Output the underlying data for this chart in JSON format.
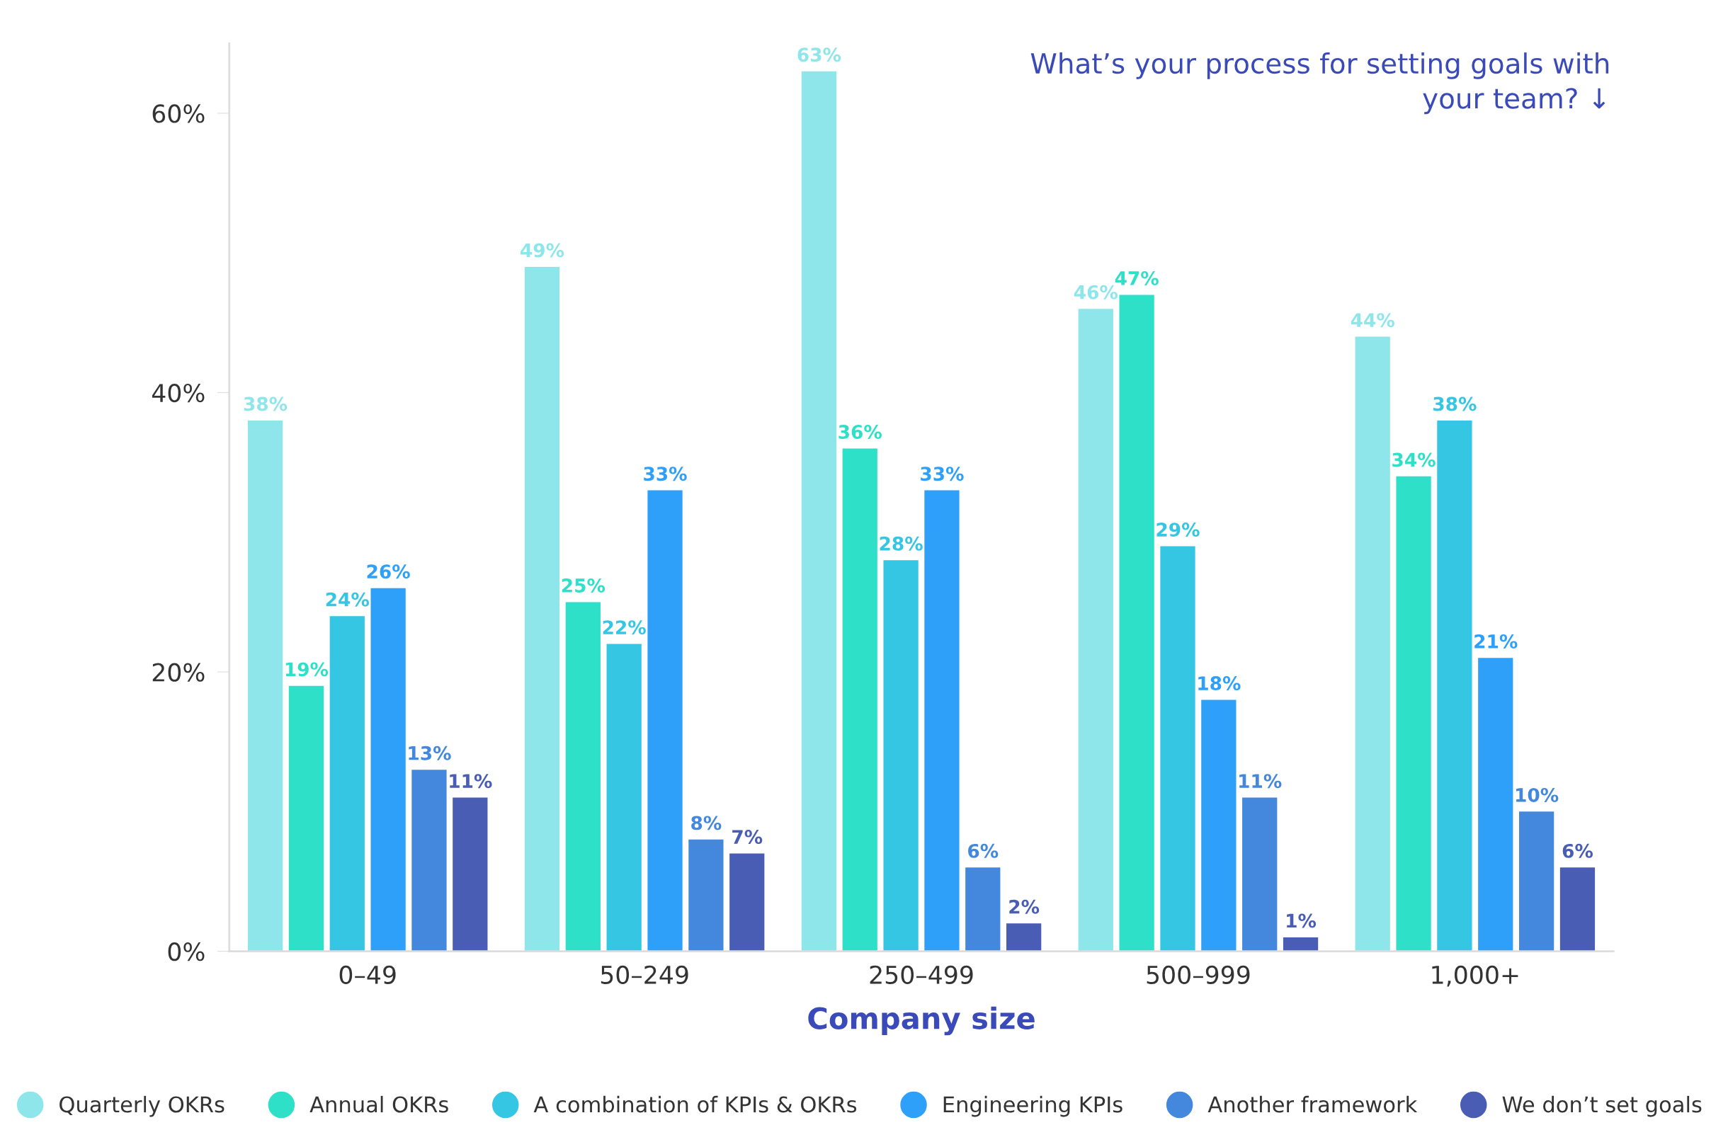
{
  "chart_data": {
    "type": "bar",
    "title": "What’s your process for setting goals with your team? ↓",
    "xlabel": "Company size",
    "categories": [
      "0–49",
      "50–249",
      "250–499",
      "500–999",
      "1,000+"
    ],
    "series": [
      {
        "name": "Quarterly OKRs",
        "color": "#8ee6ea",
        "values": [
          38,
          49,
          63,
          46,
          44
        ],
        "value_labels": [
          "38%",
          "49%",
          "63%",
          "46%",
          "44%"
        ]
      },
      {
        "name": "Annual OKRs",
        "color": "#2fe0c8",
        "values": [
          19,
          25,
          36,
          47,
          34
        ],
        "value_labels": [
          "19%",
          "25%",
          "36%",
          "47%",
          "34%"
        ]
      },
      {
        "name": "A combination of KPIs & OKRs",
        "color": "#35c6e4",
        "values": [
          24,
          22,
          28,
          29,
          38
        ],
        "value_labels": [
          "24%",
          "22%",
          "28%",
          "29%",
          "38%"
        ]
      },
      {
        "name": "Engineering KPIs",
        "color": "#2fa0fa",
        "values": [
          26,
          33,
          33,
          18,
          21
        ],
        "value_labels": [
          "26%",
          "33%",
          "33%",
          "18%",
          "21%"
        ]
      },
      {
        "name": "Another framework",
        "color": "#4488dd",
        "values": [
          13,
          8,
          6,
          11,
          10
        ],
        "value_labels": [
          "13%",
          "8%",
          "6%",
          "11%",
          "10%"
        ]
      },
      {
        "name": "We don’t set goals",
        "color": "#4a5db5",
        "values": [
          11,
          7,
          2,
          1,
          6
        ],
        "value_labels": [
          "11%",
          "7%",
          "2%",
          "1%",
          "6%"
        ]
      }
    ],
    "ylim": [
      0,
      65
    ],
    "yticks": [
      {
        "value": 0,
        "label": "0%"
      },
      {
        "value": 20,
        "label": "20%"
      },
      {
        "value": 40,
        "label": "40%"
      },
      {
        "value": 60,
        "label": "60%"
      }
    ],
    "grid": false,
    "legend": "bottom"
  }
}
